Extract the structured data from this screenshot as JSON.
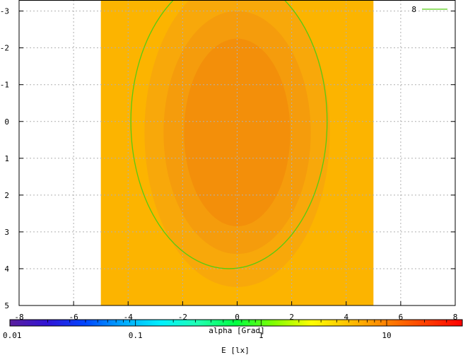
{
  "chart_data": {
    "type": "heatmap",
    "title": "",
    "xlabel": "alpha [Grad]",
    "ylabel": "",
    "xlim": [
      -8,
      8
    ],
    "ylim": [
      -3.3,
      5
    ],
    "y_inverted": true,
    "grid": true,
    "x_ticks": [
      "-8",
      "-6",
      "-4",
      "-2",
      "0",
      "2",
      "4",
      "6",
      "8"
    ],
    "x_tick_values": [
      -8,
      -6,
      -4,
      -2,
      0,
      2,
      4,
      6,
      8
    ],
    "y_ticks": [
      "-3",
      "-2",
      "-1",
      "0",
      "1",
      "2",
      "3",
      "4",
      "5"
    ],
    "y_tick_values": [
      -3,
      -2,
      -1,
      0,
      1,
      2,
      3,
      4,
      5
    ],
    "field_extent": {
      "x": [
        -5,
        5
      ],
      "y": [
        -3.3,
        5
      ]
    },
    "illuminance_center": {
      "x": 0,
      "y": 0.3
    },
    "bands": [
      {
        "level": "outer",
        "color": "#fcb400",
        "rx": 5,
        "ry": 8
      },
      {
        "level": "mid-1",
        "color": "#f8a80a",
        "rx": 3.4,
        "ry": 4.2
      },
      {
        "level": "mid-2",
        "color": "#f59c0c",
        "rx": 2.7,
        "ry": 3.3
      },
      {
        "level": "inner",
        "color": "#f38f0a",
        "rx": 1.95,
        "ry": 2.55
      }
    ],
    "contours": [
      {
        "level": "8",
        "color": "#55cc11",
        "center": [
          -0.3,
          0
        ],
        "rx": 3.6,
        "ry": 4
      }
    ],
    "legend": {
      "position": "top-right",
      "entries": [
        {
          "label": "8",
          "color": "#55cc11"
        }
      ]
    },
    "colorbar": {
      "label": "E [lx]",
      "scale": "log",
      "range": [
        0.01,
        40
      ],
      "ticks": [
        "0.01",
        "0.1",
        "1",
        "10"
      ],
      "tick_values": [
        0.01,
        0.1,
        1,
        10
      ],
      "stops": [
        "#5a1e9c",
        "#3014d6",
        "#0046ff",
        "#00a8ff",
        "#00f0ff",
        "#20ffb0",
        "#00ff40",
        "#80ff00",
        "#ffff00",
        "#ffc000",
        "#ff8000",
        "#ff4000",
        "#ff0000"
      ]
    }
  }
}
